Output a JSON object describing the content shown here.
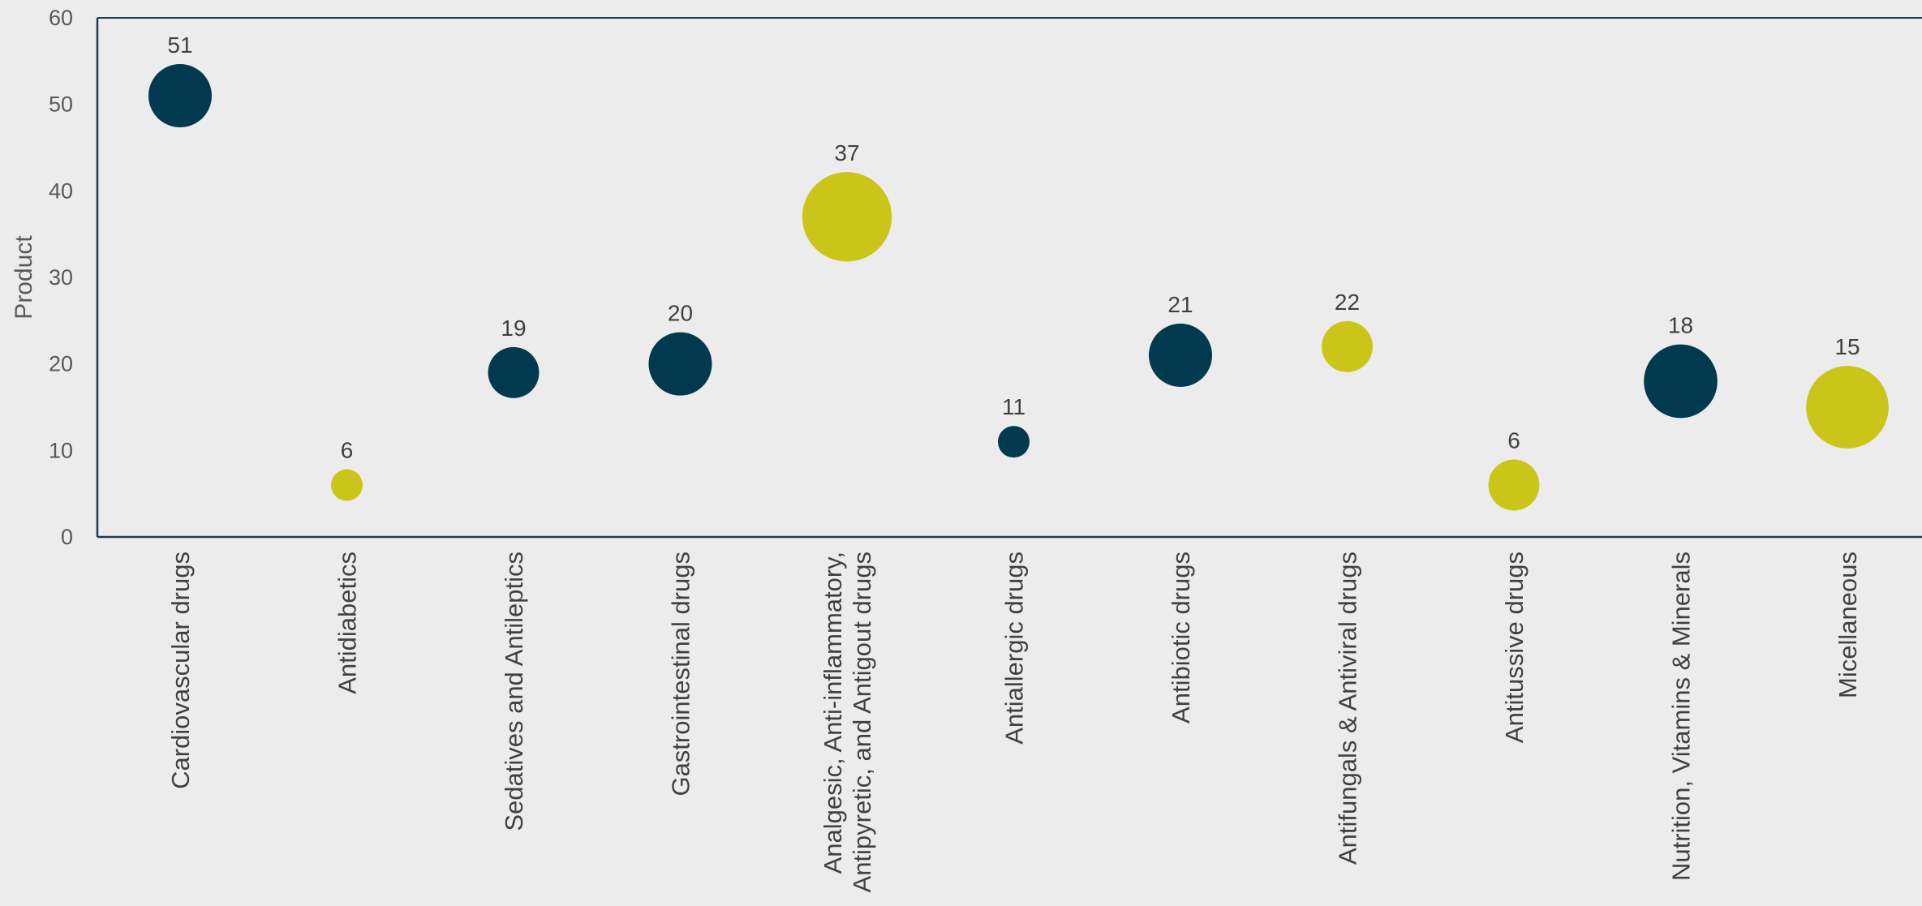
{
  "chart_data": {
    "type": "scatter",
    "variant": "bubble",
    "title": "",
    "xlabel": "",
    "ylabel": "Product",
    "ylim": [
      0,
      60
    ],
    "yticks": [
      0,
      10,
      20,
      30,
      40,
      50,
      60
    ],
    "grid": false,
    "legend": "none",
    "colors": {
      "dark": "#013a4f",
      "lime": "#cbc519",
      "axis": "#1f3b4d"
    },
    "points": [
      {
        "category": "Cardiovascular drugs",
        "label_lines": [
          "Cardiovascular drugs"
        ],
        "y": 51,
        "label": "51",
        "size": 20,
        "color": "dark"
      },
      {
        "category": "Antidiabetics",
        "label_lines": [
          "Antidiabetics"
        ],
        "y": 6,
        "label": "6",
        "size": 5,
        "color": "lime"
      },
      {
        "category": "Sedatives and Antileptics",
        "label_lines": [
          "Sedatives and Antileptics"
        ],
        "y": 19,
        "label": "19",
        "size": 13,
        "color": "dark"
      },
      {
        "category": "Gastrointestinal drugs",
        "label_lines": [
          "Gastrointestinal drugs"
        ],
        "y": 20,
        "label": "20",
        "size": 20,
        "color": "dark"
      },
      {
        "category": "Analgesic, Anti-inflammatory, Antipyretic, and Antigout drugs",
        "label_lines": [
          "Analgesic, Anti-inflammatory,",
          "Antipyretic, and Antigout drugs"
        ],
        "y": 37,
        "label": "37",
        "size": 40,
        "color": "lime"
      },
      {
        "category": "Antiallergic drugs",
        "label_lines": [
          "Antiallergic drugs"
        ],
        "y": 11,
        "label": "11",
        "size": 5,
        "color": "dark"
      },
      {
        "category": "Antibiotic drugs",
        "label_lines": [
          "Antibiotic drugs"
        ],
        "y": 21,
        "label": "21",
        "size": 20,
        "color": "dark"
      },
      {
        "category": "Antifungals & Antiviral drugs",
        "label_lines": [
          "Antifungals & Antiviral drugs"
        ],
        "y": 22,
        "label": "22",
        "size": 13,
        "color": "lime"
      },
      {
        "category": "Antitussive drugs",
        "label_lines": [
          "Antitussive drugs"
        ],
        "y": 6,
        "label": "6",
        "size": 13,
        "color": "lime"
      },
      {
        "category": "Nutrition, Vitamins & Minerals",
        "label_lines": [
          "Nutrition, Vitamins & Minerals"
        ],
        "y": 18,
        "label": "18",
        "size": 27,
        "color": "dark"
      },
      {
        "category": "Micellaneous",
        "label_lines": [
          "Micellaneous"
        ],
        "y": 15,
        "label": "15",
        "size": 34,
        "color": "lime"
      }
    ]
  }
}
